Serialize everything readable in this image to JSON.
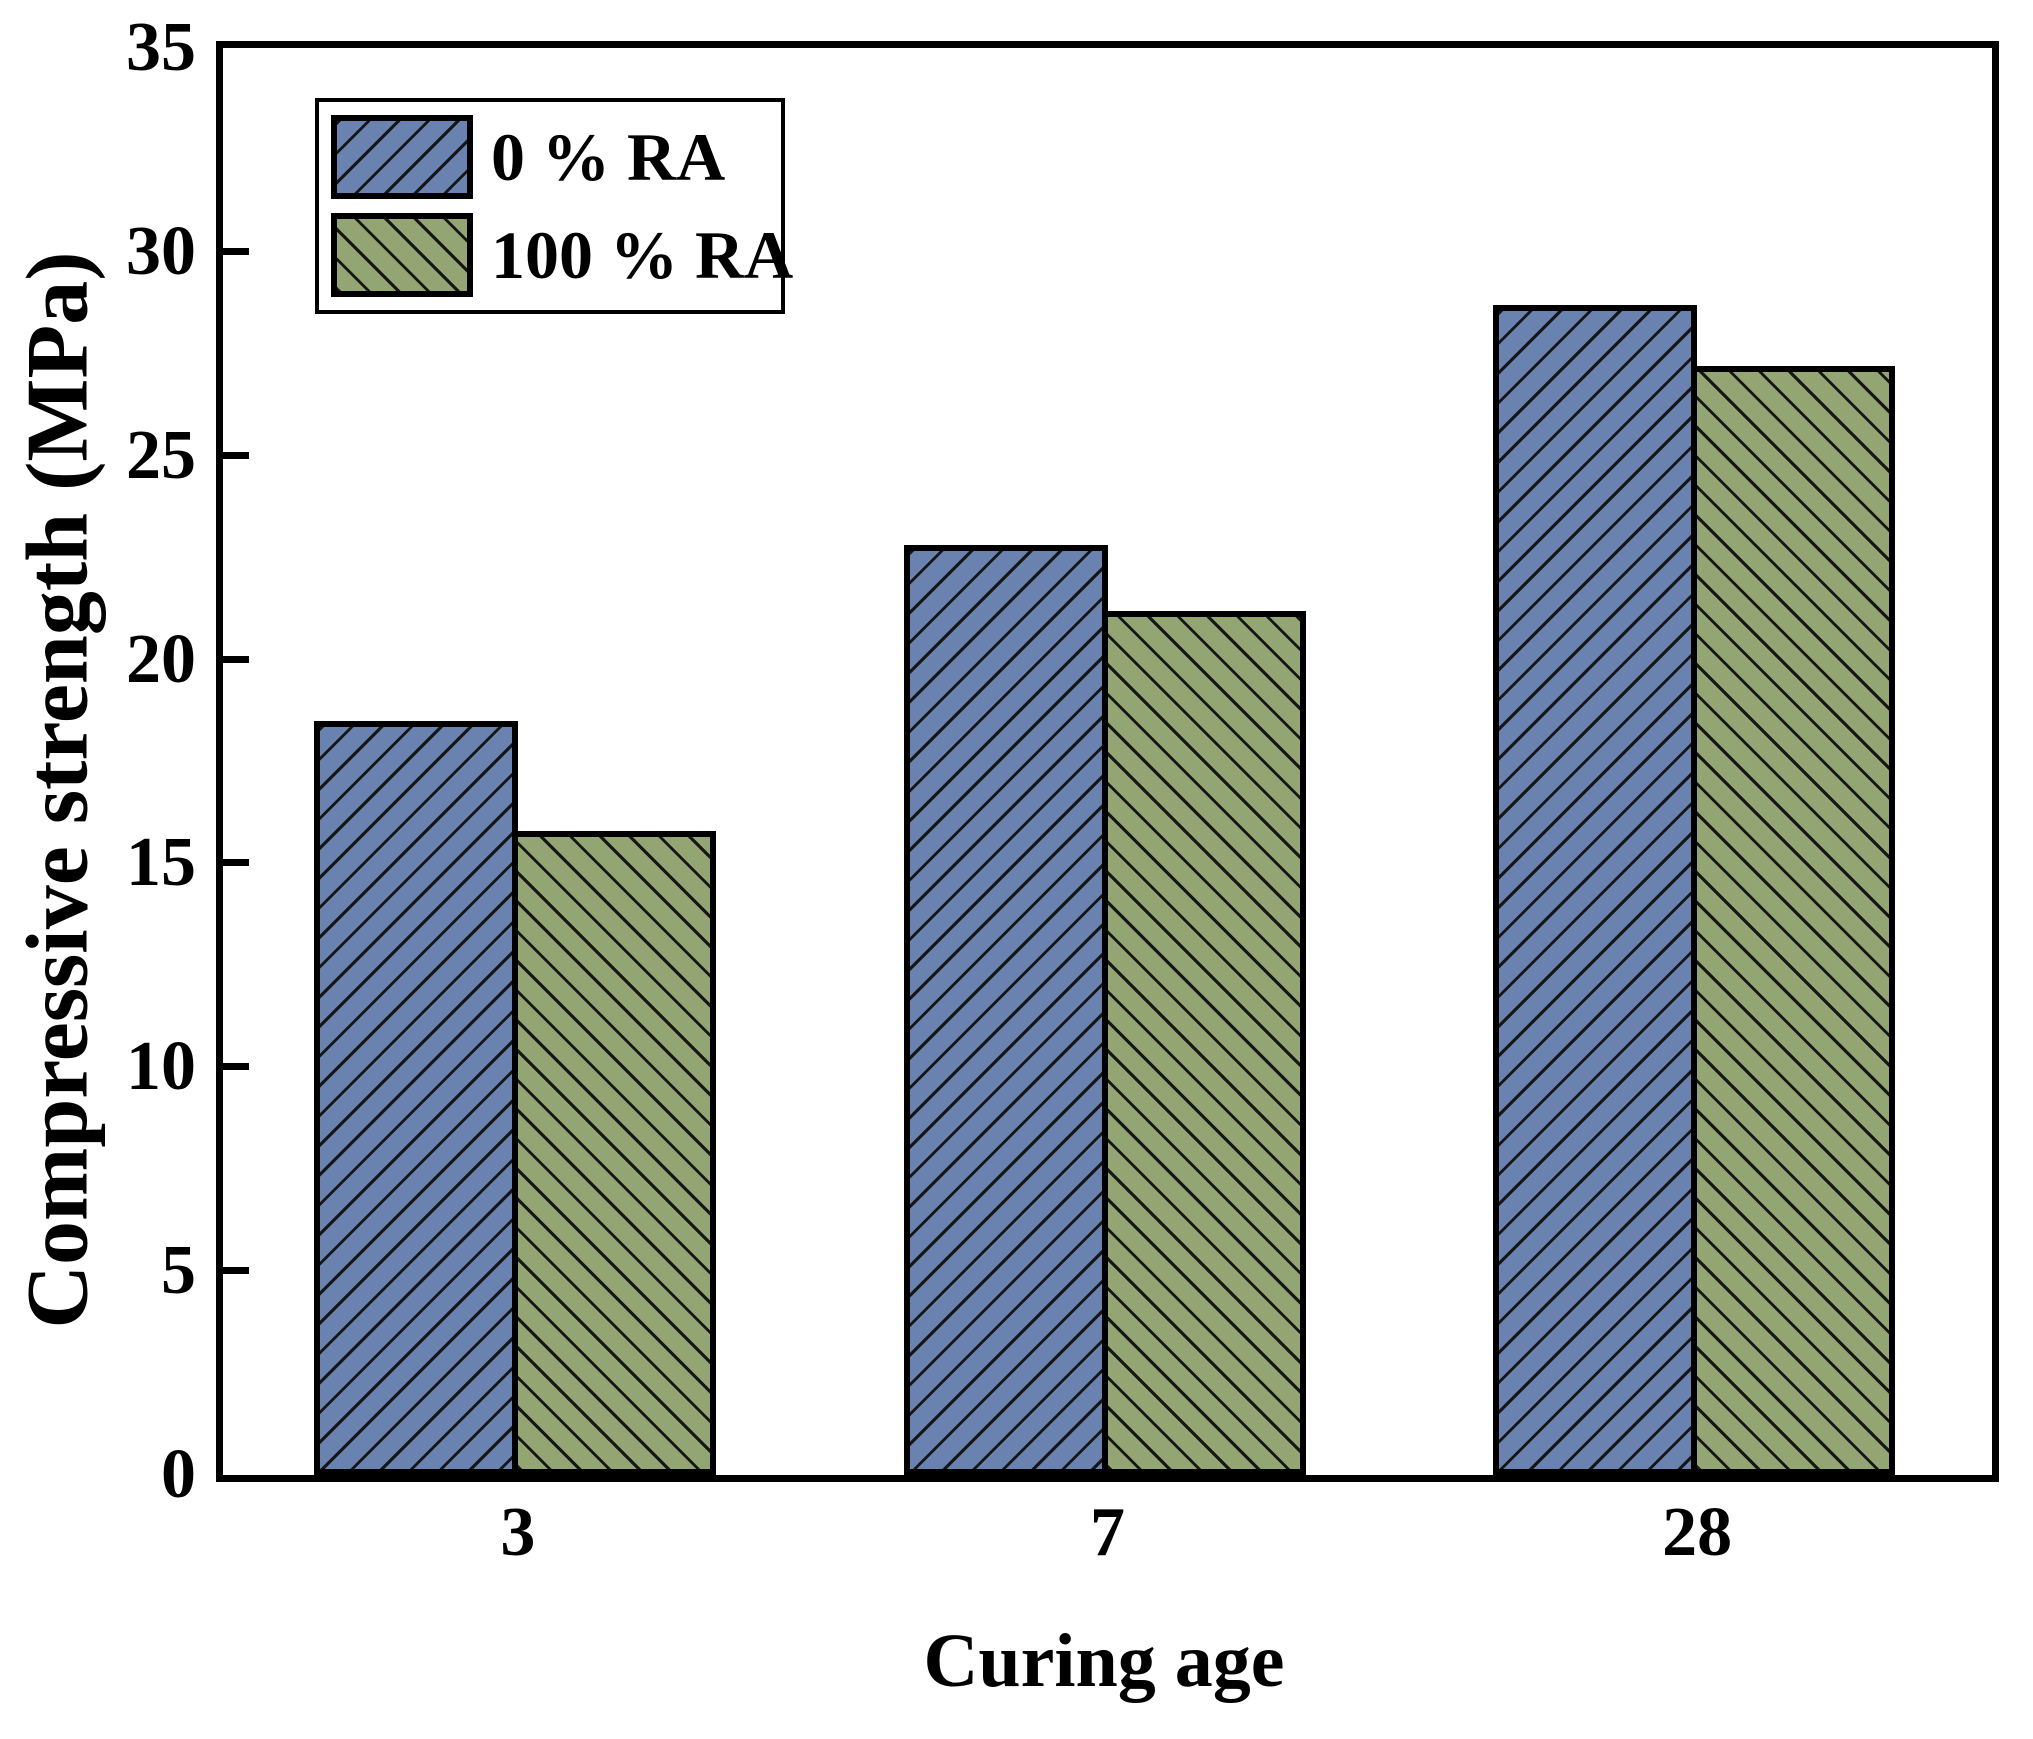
{
  "chart_data": {
    "type": "bar",
    "title": "",
    "xlabel": "Curing age",
    "ylabel": "Compressive strength (MPa)",
    "categories": [
      "3",
      "7",
      "28"
    ],
    "series": [
      {
        "name": "0 % RA",
        "color": "#6A82B0",
        "hatch": "/",
        "values": [
          18.5,
          22.8,
          28.7
        ]
      },
      {
        "name": "100 % RA",
        "color": "#93A572",
        "hatch": "\\",
        "values": [
          15.8,
          21.2,
          27.2
        ]
      }
    ],
    "ylim": [
      0,
      35
    ],
    "yticks": [
      0,
      5,
      10,
      15,
      20,
      25,
      30,
      35
    ],
    "ytick_step": 5,
    "grid": false,
    "legend_position": "upper-left",
    "frame_color": "#000000",
    "hatch_color": "#161616",
    "background_color": "#ffffff"
  }
}
